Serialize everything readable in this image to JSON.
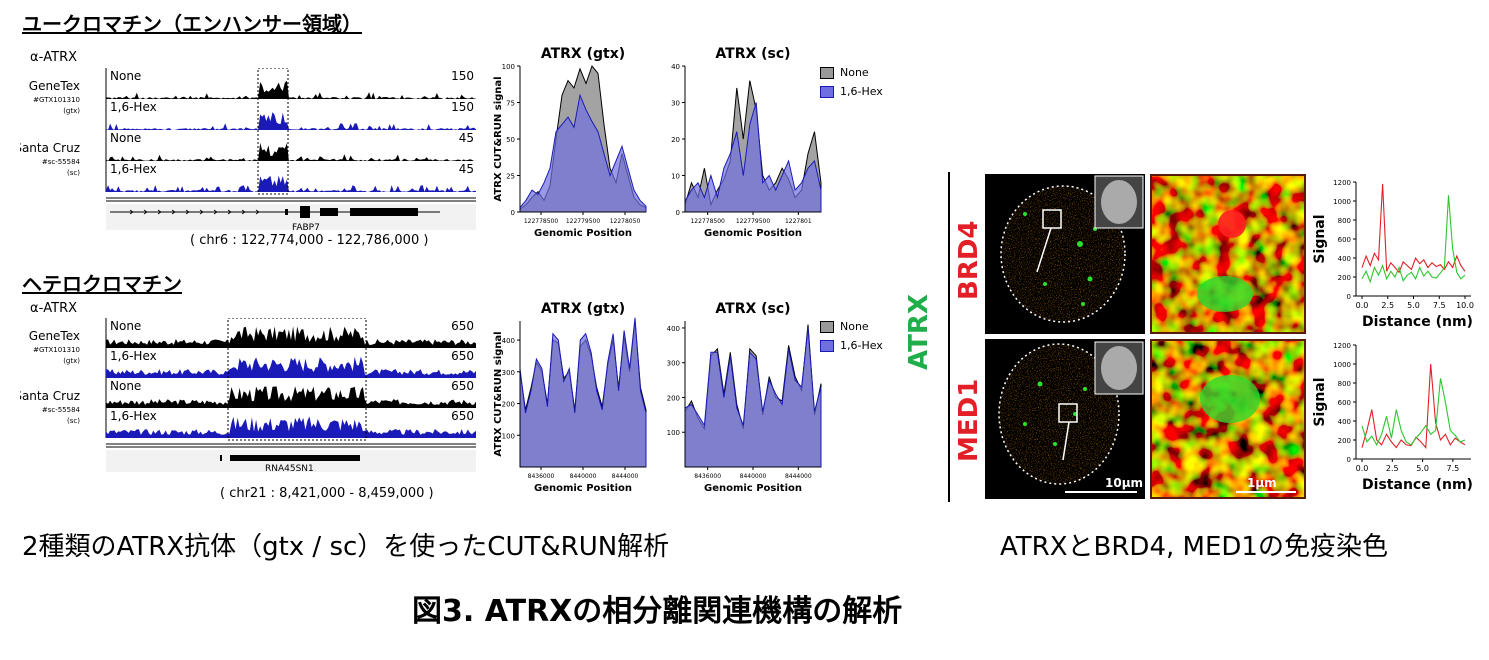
{
  "sections": [
    {
      "title": "ユークロマチン（エンハンサー領域）",
      "antibody_label": "α-ATRX",
      "tracks": [
        {
          "group": "GeneTex",
          "catalog": "#GTX101310",
          "tag": "(gtx)",
          "condition": "None",
          "scale": "150",
          "color": "#000000"
        },
        {
          "group": "",
          "catalog": "",
          "tag": "",
          "condition": "1,6-Hex",
          "scale": "150",
          "color": "#1a1ab8"
        },
        {
          "group": "Santa Cruz",
          "catalog": "#sc-55584",
          "tag": "(sc)",
          "condition": "None",
          "scale": "45",
          "color": "#000000"
        },
        {
          "group": "",
          "catalog": "",
          "tag": "",
          "condition": "1,6-Hex",
          "scale": "45",
          "color": "#1a1ab8"
        }
      ],
      "gene": "FABP7",
      "coords": "( chr6 : 122,774,000 - 122,786,000 )"
    },
    {
      "title": "ヘテロクロマチン",
      "antibody_label": "α-ATRX",
      "tracks": [
        {
          "group": "GeneTex",
          "catalog": "#GTX101310",
          "tag": "(gtx)",
          "condition": "None",
          "scale": "650",
          "color": "#000000"
        },
        {
          "group": "",
          "catalog": "",
          "tag": "",
          "condition": "1,6-Hex",
          "scale": "650",
          "color": "#1a1ab8"
        },
        {
          "group": "Santa Cruz",
          "catalog": "#sc-55584",
          "tag": "(sc)",
          "condition": "None",
          "scale": "650",
          "color": "#000000"
        },
        {
          "group": "",
          "catalog": "",
          "tag": "",
          "condition": "1,6-Hex",
          "scale": "650",
          "color": "#1a1ab8"
        }
      ],
      "gene": "RNA45SN1",
      "coords": "( chr21 : 8,421,000 - 8,459,000 )"
    }
  ],
  "chart_data": [
    {
      "type": "area",
      "title": "ATRX (gtx)",
      "xlabel": "Genomic Position",
      "ylabel": "ATRX CUT&RUN signal",
      "x_ticks": [
        "122778500",
        "122779500",
        "12278050"
      ],
      "ylim": [
        0,
        100
      ],
      "y_ticks": [
        0,
        25,
        50,
        75,
        100
      ],
      "legend": "",
      "series": [
        {
          "name": "None",
          "color": "#999999",
          "values": [
            2,
            5,
            10,
            14,
            8,
            18,
            50,
            80,
            90,
            85,
            98,
            88,
            100,
            95,
            60,
            30,
            20,
            40,
            25,
            10,
            5,
            3
          ]
        },
        {
          "name": "1,6-Hex",
          "color": "#6f6fe0",
          "values": [
            3,
            8,
            15,
            12,
            20,
            30,
            55,
            60,
            65,
            58,
            80,
            70,
            62,
            55,
            40,
            25,
            35,
            45,
            30,
            15,
            8,
            4
          ]
        }
      ]
    },
    {
      "type": "area",
      "title": "ATRX (sc)",
      "xlabel": "Genomic Position",
      "ylabel": "",
      "x_ticks": [
        "122778500",
        "122779500",
        "1227801"
      ],
      "ylim": [
        0,
        40
      ],
      "y_ticks": [
        0,
        10,
        20,
        30,
        40
      ],
      "legend": "top-right",
      "series": [
        {
          "name": "None",
          "color": "#999999",
          "values": [
            2,
            8,
            4,
            12,
            2,
            6,
            9,
            14,
            34,
            20,
            36,
            28,
            10,
            6,
            8,
            12,
            9,
            4,
            6,
            16,
            22,
            8
          ]
        },
        {
          "name": "1,6-Hex",
          "color": "#6f6fe0",
          "values": [
            3,
            6,
            8,
            4,
            10,
            4,
            12,
            16,
            22,
            10,
            24,
            30,
            8,
            10,
            6,
            10,
            14,
            6,
            8,
            12,
            14,
            6
          ]
        }
      ]
    },
    {
      "type": "area",
      "title": "ATRX (gtx)",
      "xlabel": "Genomic Position",
      "ylabel": "ATRX CUT&RUN signal",
      "x_ticks": [
        "8436000",
        "8440000",
        "8444000"
      ],
      "ylim": [
        0,
        460
      ],
      "y_ticks": [
        100,
        200,
        300,
        400
      ],
      "legend": "",
      "series": [
        {
          "name": "None",
          "color": "#999999",
          "values": [
            300,
            180,
            250,
            330,
            300,
            200,
            400,
            390,
            280,
            300,
            180,
            380,
            400,
            350,
            250,
            190,
            320,
            400,
            250,
            410,
            300,
            460,
            250,
            180
          ]
        },
        {
          "name": "1,6-Hex",
          "color": "#6f6fe0",
          "values": [
            310,
            170,
            240,
            340,
            310,
            190,
            420,
            400,
            270,
            310,
            170,
            400,
            420,
            360,
            240,
            180,
            330,
            420,
            240,
            430,
            310,
            470,
            240,
            170
          ]
        }
      ]
    },
    {
      "type": "area",
      "title": "ATRX (sc)",
      "xlabel": "Genomic Position",
      "ylabel": "",
      "x_ticks": [
        "8436000",
        "8440000",
        "8444000"
      ],
      "ylim": [
        0,
        420
      ],
      "y_ticks": [
        100,
        200,
        300,
        400
      ],
      "legend": "top-right",
      "series": [
        {
          "name": "None",
          "color": "#999999",
          "values": [
            160,
            190,
            140,
            110,
            320,
            340,
            210,
            330,
            180,
            110,
            340,
            320,
            150,
            260,
            200,
            190,
            350,
            260,
            220,
            410,
            150,
            240
          ]
        },
        {
          "name": "1,6-Hex",
          "color": "#6f6fe0",
          "values": [
            170,
            180,
            150,
            120,
            330,
            330,
            200,
            320,
            170,
            120,
            330,
            310,
            160,
            250,
            210,
            180,
            340,
            250,
            230,
            400,
            160,
            230
          ]
        }
      ]
    },
    {
      "type": "line",
      "title": "",
      "xlabel": "Distance (nm)",
      "ylabel": "Signal",
      "ylim": [
        0,
        1200
      ],
      "y_ticks": [
        0,
        200,
        400,
        600,
        800,
        1000,
        1200
      ],
      "x_ticks": [
        "0.0",
        "2.5",
        "5.0",
        "7.5",
        "10.0"
      ],
      "legend": "",
      "series": [
        {
          "name": "",
          "color": "#e21f26",
          "values": [
            300,
            420,
            320,
            450,
            380,
            1180,
            260,
            350,
            300,
            250,
            360,
            320,
            280,
            400,
            340,
            380,
            300,
            350,
            310,
            330,
            280,
            360,
            300,
            420,
            320,
            260
          ]
        },
        {
          "name": "",
          "color": "#2ec62e",
          "values": [
            180,
            260,
            150,
            300,
            220,
            320,
            180,
            260,
            200,
            300,
            160,
            220,
            250,
            180,
            300,
            210,
            260,
            200,
            190,
            240,
            300,
            1060,
            500,
            250,
            180,
            220
          ]
        }
      ]
    },
    {
      "type": "line",
      "title": "",
      "xlabel": "Distance (nm)",
      "ylabel": "Signal",
      "ylim": [
        0,
        1200
      ],
      "y_ticks": [
        0,
        200,
        400,
        600,
        800,
        1000,
        1200
      ],
      "x_ticks": [
        "0.0",
        "2.5",
        "5.0",
        "7.5"
      ],
      "legend": "",
      "series": [
        {
          "name": "",
          "color": "#e21f26",
          "values": [
            120,
            300,
            520,
            200,
            150,
            260,
            180,
            120,
            200,
            150,
            140,
            230,
            180,
            120,
            1000,
            380,
            200,
            260,
            150,
            220,
            180,
            150
          ]
        },
        {
          "name": "",
          "color": "#2ec62e",
          "values": [
            350,
            180,
            240,
            150,
            260,
            450,
            220,
            520,
            300,
            180,
            150,
            220,
            280,
            350,
            260,
            300,
            850,
            600,
            300,
            250,
            180,
            200
          ]
        }
      ]
    }
  ],
  "microscopy": {
    "stain_label": "ATRX",
    "rows": [
      {
        "label": "BRD4"
      },
      {
        "label": "MED1"
      }
    ],
    "scalebar_large": "10μm",
    "scalebar_small": "1μm"
  },
  "captions": {
    "left": "2種類のATRX抗体（gtx / sc）を使ったCUT&RUN解析",
    "right": "ATRXとBRD4, MED1の免疫染色",
    "figure": "図3. ATRXの相分離関連機構の解析"
  },
  "colors": {
    "hex_blue": "#1a1ab8",
    "none_gray": "#999999",
    "red": "#e21f26",
    "green": "#1fae4a"
  }
}
